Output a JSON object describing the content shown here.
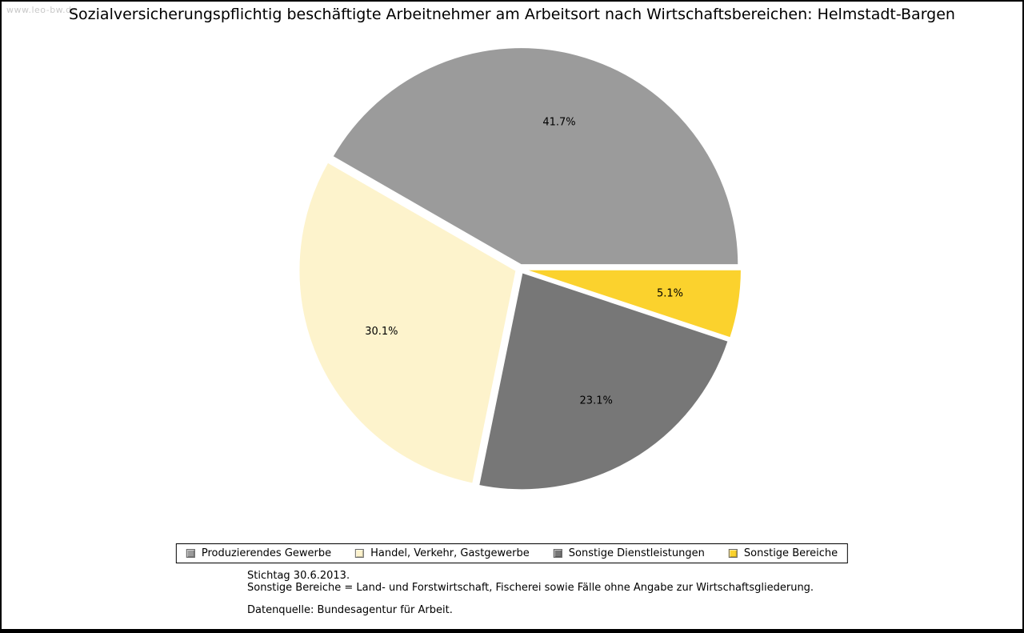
{
  "page": {
    "watermark": "www.leo-bw.de",
    "title": "Sozialversicherungspflichtig beschäftigte Arbeitnehmer am Arbeitsort nach Wirtschaftsbereichen: Helmstadt-Bargen"
  },
  "chart_data": {
    "type": "pie",
    "title": "Sozialversicherungspflichtig beschäftigte Arbeitnehmer am Arbeitsort nach Wirtschaftsbereichen: Helmstadt-Bargen",
    "unit": "percent",
    "start_angle_deg": 0,
    "direction": "counterclockwise",
    "legend_position": "bottom",
    "segments": [
      {
        "label": "Produzierendes Gewerbe",
        "value": 41.7,
        "display": "41.7%",
        "color": "#9b9b9b"
      },
      {
        "label": "Handel, Verkehr, Gastgewerbe",
        "value": 30.1,
        "display": "30.1%",
        "color": "#fdf3cc"
      },
      {
        "label": "Sonstige Dienstleistungen",
        "value": 23.1,
        "display": "23.1%",
        "color": "#777777"
      },
      {
        "label": "Sonstige Bereiche",
        "value": 5.1,
        "display": "5.1%",
        "color": "#fbd22d"
      }
    ],
    "footnotes": {
      "line1": "Stichtag 30.6.2013.",
      "line2": "Sonstige Bereiche = Land- und Forstwirtschaft, Fischerei sowie Fälle ohne Angabe zur Wirtschaftsgliederung.",
      "line3": "Datenquelle: Bundesagentur für Arbeit."
    }
  }
}
